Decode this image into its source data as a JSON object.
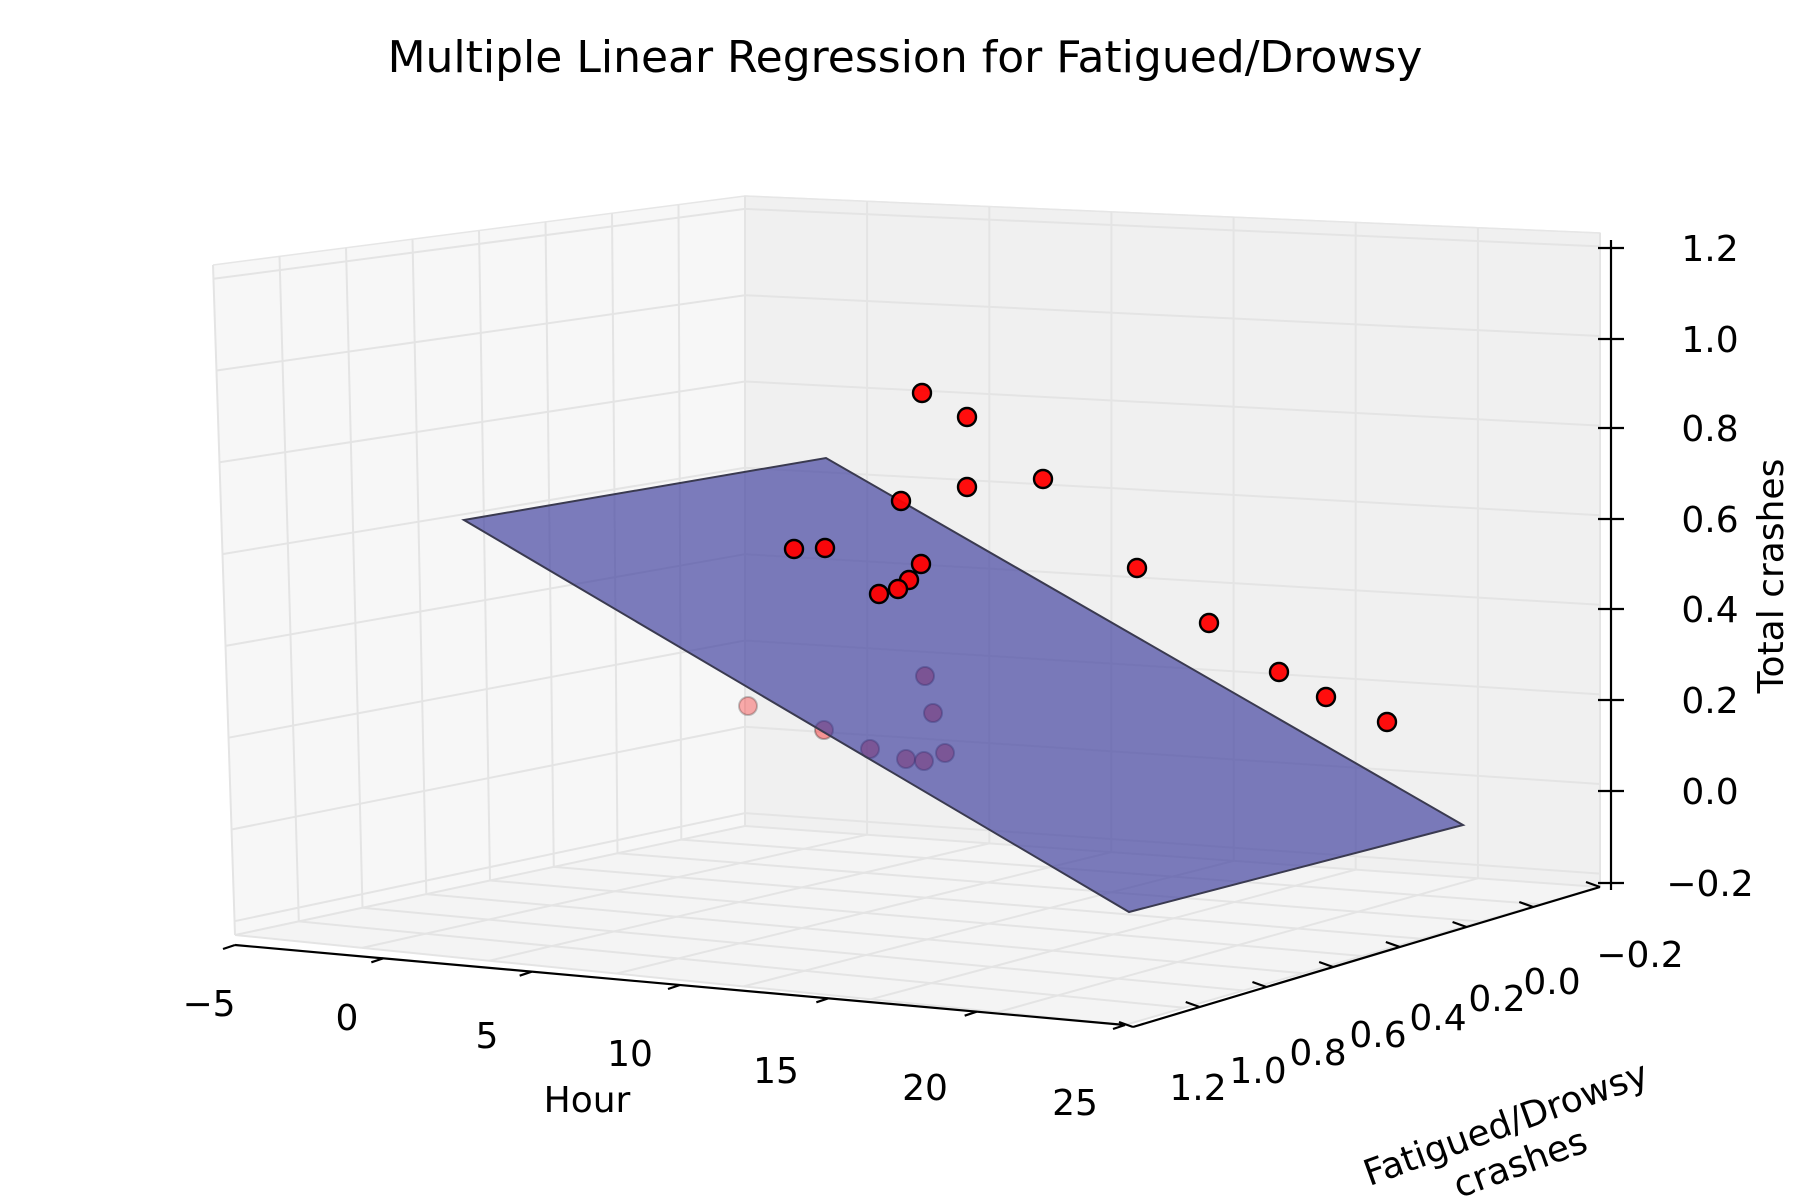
{
  "chart_data": {
    "type": "scatter",
    "title": "Multiple Linear Regression for Fatigued/Drowsy",
    "xlabel": "Hour",
    "ylabel": "Fatigued/Drowsy crashes",
    "zlabel": "Total crashes",
    "xlim": [
      -5,
      25
    ],
    "ylim": [
      1.2,
      -0.2
    ],
    "zlim": [
      -0.2,
      1.2
    ],
    "x_ticks": [
      "−5",
      "0",
      "5",
      "10",
      "15",
      "20",
      "25"
    ],
    "y_ticks": [
      "1.2",
      "1.0",
      "0.8",
      "0.6",
      "0.4",
      "0.2",
      "0.0",
      "−0.2"
    ],
    "z_ticks": [
      "−0.2",
      "0.0",
      "0.2",
      "0.4",
      "0.6",
      "0.8",
      "1.0",
      "1.2"
    ],
    "grid": true,
    "colors": {
      "points": "#ff0000",
      "point_edge": "#000000",
      "plane": "#3b3b9c",
      "pane_left": "#f7f7f7",
      "pane_back": "#f0f0f0",
      "pane_floor": "#f4f4f4",
      "grid": "#e4e4e4"
    }
  }
}
